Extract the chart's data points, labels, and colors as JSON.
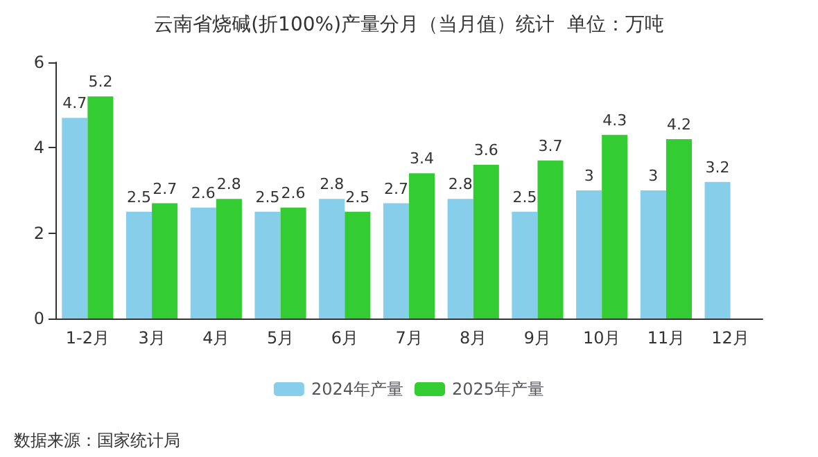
{
  "chart_data": {
    "type": "bar",
    "title": "云南省烧碱(折100%)产量分月（当月值）统计  单位：万吨",
    "categories": [
      "1-2月",
      "3月",
      "4月",
      "5月",
      "6月",
      "7月",
      "8月",
      "9月",
      "10月",
      "11月",
      "12月"
    ],
    "series": [
      {
        "name": "2024年产量",
        "color": "#87ceeb",
        "values": [
          4.7,
          2.5,
          2.6,
          2.5,
          2.8,
          2.7,
          2.8,
          2.5,
          3,
          3,
          3.2
        ]
      },
      {
        "name": "2025年产量",
        "color": "#33cc33",
        "values": [
          5.2,
          2.7,
          2.8,
          2.6,
          2.5,
          3.4,
          3.6,
          3.7,
          4.3,
          4.2,
          null
        ]
      }
    ],
    "ylim": [
      0,
      6
    ],
    "yticks": [
      0,
      2,
      4,
      6
    ],
    "grid": false,
    "legend": "bottom",
    "data_labels": true,
    "annotations": [
      "数据来源：国家统计局"
    ]
  }
}
